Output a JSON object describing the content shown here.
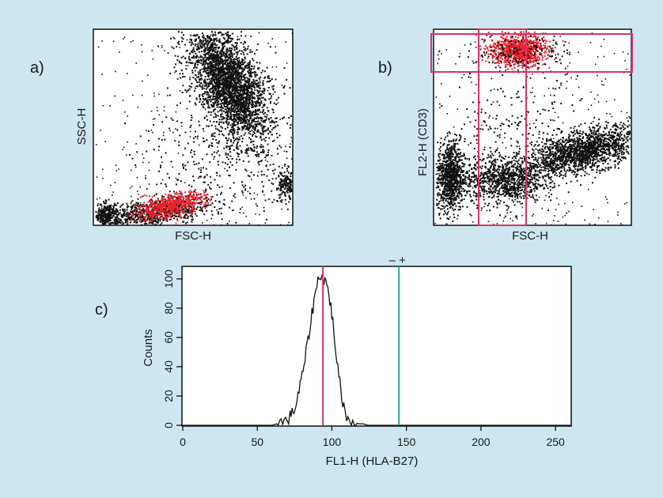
{
  "figure": {
    "background": "#cde6f0",
    "dot_color": "#111111",
    "highlight_color": "#e8202a",
    "gate_color": "#d6336c",
    "marker_color": "#2aa6a0"
  },
  "chart_data": [
    {
      "panel_label": "a)",
      "type": "scatter",
      "xlabel": "FSC-H",
      "ylabel": "SSC-H",
      "populations": [
        {
          "description": "large high-SSC cluster",
          "center": [
            0.68,
            0.72
          ],
          "highlighted": false
        },
        {
          "description": "low FSC / low SSC cluster",
          "center": [
            0.38,
            0.1
          ],
          "highlighted": true
        },
        {
          "description": "debris at low FSC",
          "center": [
            0.06,
            0.05
          ],
          "highlighted": false
        },
        {
          "description": "small cluster at right edge",
          "center": [
            0.97,
            0.2
          ],
          "highlighted": false
        }
      ]
    },
    {
      "panel_label": "b)",
      "type": "scatter",
      "xlabel": "FSC-H",
      "ylabel": "FL2-H (CD3)",
      "gates": [
        {
          "name": "horizontal gate",
          "x_range": [
            0.0,
            1.0
          ],
          "y_range": [
            0.8,
            0.99
          ]
        },
        {
          "name": "vertical gate",
          "x_range": [
            0.24,
            0.5
          ],
          "y_range": [
            0.0,
            0.99
          ]
        }
      ],
      "populations": [
        {
          "description": "gated CD3+ cluster",
          "center": [
            0.42,
            0.9
          ],
          "highlighted": true
        },
        {
          "description": "low FSC / low FL2 band",
          "center": [
            0.08,
            0.25
          ],
          "highlighted": false
        },
        {
          "description": "central low FL2 cluster",
          "center": [
            0.35,
            0.23
          ],
          "highlighted": false
        },
        {
          "description": "high FSC / mid FL2 band",
          "center": [
            0.75,
            0.38
          ],
          "highlighted": false
        }
      ]
    },
    {
      "panel_label": "c)",
      "type": "line",
      "xlabel": "FL1-H (HLA-B27)",
      "ylabel": "Counts",
      "xlim": [
        0,
        260
      ],
      "ylim": [
        0,
        108
      ],
      "xticks": [
        0,
        50,
        100,
        150,
        200,
        250
      ],
      "yticks": [
        0,
        20,
        40,
        60,
        80,
        100
      ],
      "series": [
        {
          "x": [
            60,
            63,
            66,
            69,
            72,
            74,
            76,
            78,
            80,
            82,
            84,
            86,
            88,
            90,
            92,
            94,
            96,
            98,
            100,
            102,
            104,
            106,
            108,
            110,
            112,
            115,
            118,
            121,
            124
          ],
          "y": [
            0,
            1,
            2,
            3,
            6,
            9,
            14,
            24,
            33,
            45,
            58,
            72,
            85,
            96,
            104,
            100,
            98,
            90,
            76,
            58,
            38,
            24,
            13,
            6,
            3,
            2,
            1,
            1,
            0
          ]
        }
      ],
      "markers": [
        {
          "label": "",
          "x": 94,
          "color": "#d6336c"
        },
        {
          "label": "–  +",
          "x": 145,
          "color": "#2aa6a0"
        }
      ]
    }
  ]
}
